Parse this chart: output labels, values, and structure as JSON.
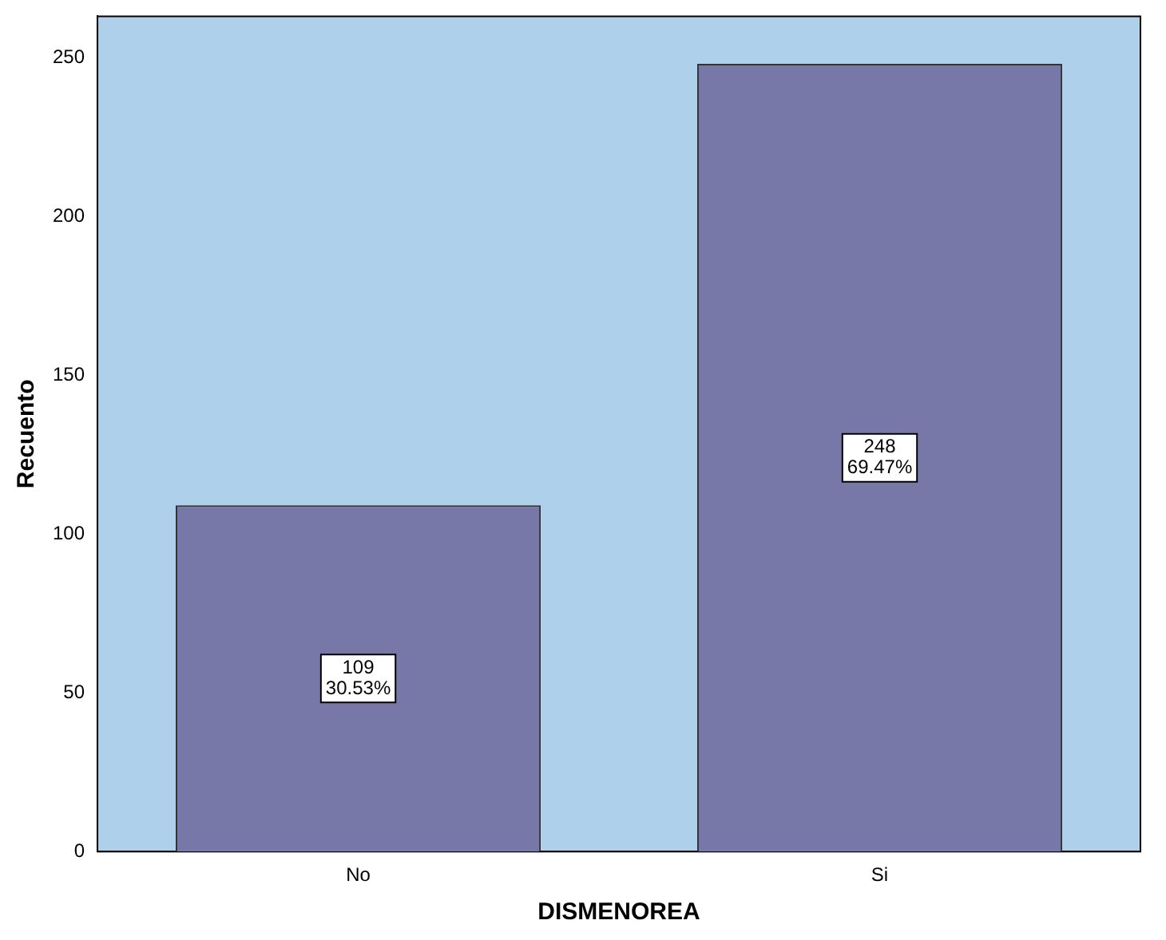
{
  "chart_data": {
    "type": "bar",
    "xlabel": "DISMENOREA",
    "ylabel": "Recuento",
    "categories": [
      "No",
      "Si"
    ],
    "series": [
      {
        "color": "#7878a8",
        "values": [
          109,
          248
        ],
        "value_labels": [
          "109\n30.53%",
          "248\n69.47%"
        ]
      }
    ],
    "ylim": [
      0,
      263
    ],
    "yticks": [
      0,
      50,
      100,
      150,
      200,
      250
    ],
    "grid": false,
    "legend": false
  }
}
